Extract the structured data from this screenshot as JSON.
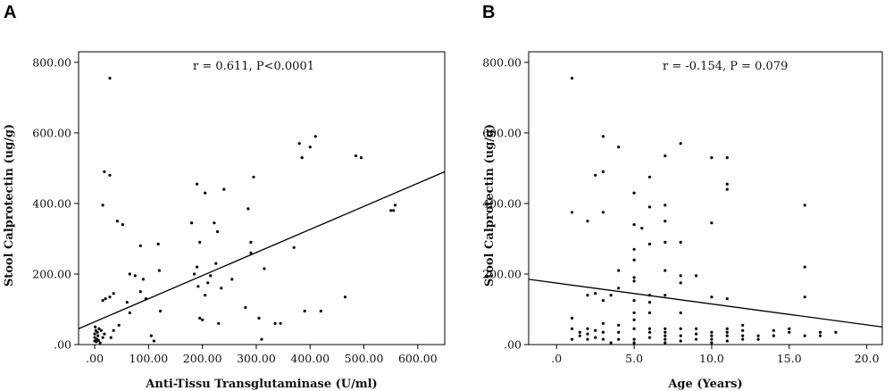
{
  "chart_data": [
    {
      "type": "scatter",
      "panel_label": "A",
      "annotation": "r = 0.611, P<0.0001",
      "xlabel": "Anti-Tissu Transglutaminase (U/ml)",
      "ylabel": "Stool Calprotectin (ug/g)",
      "xlim": [
        -30,
        650
      ],
      "ylim": [
        0,
        830
      ],
      "x_ticks": [
        0,
        100,
        200,
        300,
        400,
        500,
        600
      ],
      "x_tick_labels": [
        ".00",
        "100.00",
        "200.00",
        "300.00",
        "400.00",
        "500.00",
        "600.00"
      ],
      "y_ticks": [
        0,
        200,
        400,
        600,
        800
      ],
      "y_tick_labels": [
        ".00",
        "200.00",
        "400.00",
        "600.00",
        "800.00"
      ],
      "fit_line": [
        [
          -30,
          45
        ],
        [
          650,
          490
        ]
      ],
      "points": [
        [
          0,
          10
        ],
        [
          0,
          20
        ],
        [
          0,
          30
        ],
        [
          2,
          40
        ],
        [
          4,
          15
        ],
        [
          5,
          35
        ],
        [
          6,
          25
        ],
        [
          8,
          45
        ],
        [
          10,
          5
        ],
        [
          3,
          8
        ],
        [
          12,
          40
        ],
        [
          15,
          20
        ],
        [
          18,
          30
        ],
        [
          7,
          12
        ],
        [
          1,
          50
        ],
        [
          28,
          755
        ],
        [
          18,
          490
        ],
        [
          28,
          480
        ],
        [
          15,
          395
        ],
        [
          15,
          125
        ],
        [
          20,
          130
        ],
        [
          28,
          135
        ],
        [
          35,
          145
        ],
        [
          30,
          20
        ],
        [
          35,
          40
        ],
        [
          42,
          350
        ],
        [
          52,
          340
        ],
        [
          45,
          55
        ],
        [
          60,
          120
        ],
        [
          65,
          90
        ],
        [
          65,
          200
        ],
        [
          75,
          195
        ],
        [
          85,
          280
        ],
        [
          85,
          150
        ],
        [
          90,
          185
        ],
        [
          95,
          130
        ],
        [
          105,
          25
        ],
        [
          110,
          10
        ],
        [
          118,
          285
        ],
        [
          120,
          210
        ],
        [
          122,
          95
        ],
        [
          180,
          345
        ],
        [
          185,
          200
        ],
        [
          190,
          455
        ],
        [
          195,
          290
        ],
        [
          190,
          220
        ],
        [
          192,
          165
        ],
        [
          195,
          75
        ],
        [
          200,
          70
        ],
        [
          205,
          140
        ],
        [
          205,
          430
        ],
        [
          210,
          175
        ],
        [
          215,
          195
        ],
        [
          222,
          345
        ],
        [
          225,
          230
        ],
        [
          228,
          320
        ],
        [
          230,
          60
        ],
        [
          235,
          160
        ],
        [
          240,
          440
        ],
        [
          255,
          185
        ],
        [
          280,
          105
        ],
        [
          285,
          385
        ],
        [
          290,
          290
        ],
        [
          290,
          260
        ],
        [
          295,
          475
        ],
        [
          305,
          75
        ],
        [
          310,
          15
        ],
        [
          315,
          215
        ],
        [
          335,
          60
        ],
        [
          345,
          60
        ],
        [
          370,
          275
        ],
        [
          380,
          570
        ],
        [
          385,
          530
        ],
        [
          390,
          95
        ],
        [
          400,
          560
        ],
        [
          410,
          590
        ],
        [
          420,
          95
        ],
        [
          465,
          135
        ],
        [
          485,
          535
        ],
        [
          495,
          530
        ],
        [
          550,
          380
        ],
        [
          555,
          380
        ],
        [
          558,
          395
        ]
      ]
    },
    {
      "type": "scatter",
      "panel_label": "B",
      "annotation": "r = -0.154, P = 0.079",
      "xlabel": "Age (Years)",
      "ylabel": "Stool Calprotectin (ug/g)",
      "xlim": [
        -1.8,
        21
      ],
      "ylim": [
        0,
        830
      ],
      "x_ticks": [
        0,
        5,
        10,
        15,
        20
      ],
      "x_tick_labels": [
        ".0",
        "5.0",
        "10.0",
        "15.0",
        "20.0"
      ],
      "y_ticks": [
        0,
        200,
        400,
        600,
        800
      ],
      "y_tick_labels": [
        ".00",
        "200.00",
        "400.00",
        "600.00",
        "800.00"
      ],
      "fit_line": [
        [
          -1.8,
          185
        ],
        [
          21,
          50
        ]
      ],
      "points": [
        [
          1.0,
          755
        ],
        [
          1.0,
          375
        ],
        [
          1.0,
          75
        ],
        [
          1.0,
          45
        ],
        [
          1.0,
          15
        ],
        [
          1.5,
          25
        ],
        [
          1.5,
          35
        ],
        [
          2.0,
          350
        ],
        [
          2.0,
          140
        ],
        [
          2.0,
          45
        ],
        [
          2.0,
          30
        ],
        [
          2.0,
          15
        ],
        [
          2.5,
          480
        ],
        [
          2.5,
          145
        ],
        [
          2.5,
          40
        ],
        [
          2.5,
          20
        ],
        [
          3.0,
          590
        ],
        [
          3.0,
          490
        ],
        [
          3.0,
          375
        ],
        [
          3.0,
          125
        ],
        [
          3.0,
          60
        ],
        [
          3.0,
          35
        ],
        [
          3.0,
          15
        ],
        [
          3.5,
          140
        ],
        [
          3.5,
          5
        ],
        [
          4.0,
          560
        ],
        [
          4.0,
          210
        ],
        [
          4.0,
          160
        ],
        [
          4.0,
          55
        ],
        [
          4.0,
          35
        ],
        [
          4.0,
          15
        ],
        [
          5.0,
          430
        ],
        [
          5.0,
          340
        ],
        [
          5.0,
          270
        ],
        [
          5.0,
          240
        ],
        [
          5.0,
          190
        ],
        [
          5.0,
          180
        ],
        [
          5.0,
          125
        ],
        [
          5.0,
          90
        ],
        [
          5.0,
          70
        ],
        [
          5.0,
          45
        ],
        [
          5.0,
          15
        ],
        [
          5.0,
          5
        ],
        [
          5.5,
          330
        ],
        [
          6.0,
          475
        ],
        [
          6.0,
          390
        ],
        [
          6.0,
          285
        ],
        [
          6.0,
          140
        ],
        [
          6.0,
          120
        ],
        [
          6.0,
          90
        ],
        [
          6.0,
          45
        ],
        [
          6.0,
          35
        ],
        [
          6.0,
          20
        ],
        [
          7.0,
          535
        ],
        [
          7.0,
          395
        ],
        [
          7.0,
          350
        ],
        [
          7.0,
          290
        ],
        [
          7.0,
          210
        ],
        [
          7.0,
          140
        ],
        [
          7.0,
          45
        ],
        [
          7.0,
          35
        ],
        [
          7.0,
          25
        ],
        [
          7.0,
          15
        ],
        [
          7.0,
          5
        ],
        [
          8.0,
          570
        ],
        [
          8.0,
          290
        ],
        [
          8.0,
          195
        ],
        [
          8.0,
          175
        ],
        [
          8.0,
          90
        ],
        [
          8.0,
          45
        ],
        [
          8.0,
          25
        ],
        [
          8.0,
          10
        ],
        [
          9.0,
          195
        ],
        [
          9.0,
          45
        ],
        [
          9.0,
          30
        ],
        [
          9.0,
          15
        ],
        [
          10.0,
          530
        ],
        [
          10.0,
          345
        ],
        [
          10.0,
          135
        ],
        [
          10.0,
          35
        ],
        [
          10.0,
          25
        ],
        [
          10.0,
          15
        ],
        [
          10.0,
          5
        ],
        [
          11.0,
          530
        ],
        [
          11.0,
          455
        ],
        [
          11.0,
          440
        ],
        [
          11.0,
          130
        ],
        [
          11.0,
          45
        ],
        [
          11.0,
          35
        ],
        [
          11.0,
          25
        ],
        [
          11.0,
          10
        ],
        [
          12.0,
          55
        ],
        [
          12.0,
          40
        ],
        [
          12.0,
          25
        ],
        [
          12.0,
          15
        ],
        [
          13.0,
          25
        ],
        [
          13.0,
          15
        ],
        [
          14.0,
          40
        ],
        [
          14.0,
          25
        ],
        [
          15.0,
          45
        ],
        [
          15.0,
          35
        ],
        [
          16.0,
          395
        ],
        [
          16.0,
          220
        ],
        [
          16.0,
          135
        ],
        [
          16.0,
          25
        ],
        [
          17.0,
          35
        ],
        [
          17.0,
          25
        ],
        [
          18.0,
          35
        ]
      ]
    }
  ]
}
